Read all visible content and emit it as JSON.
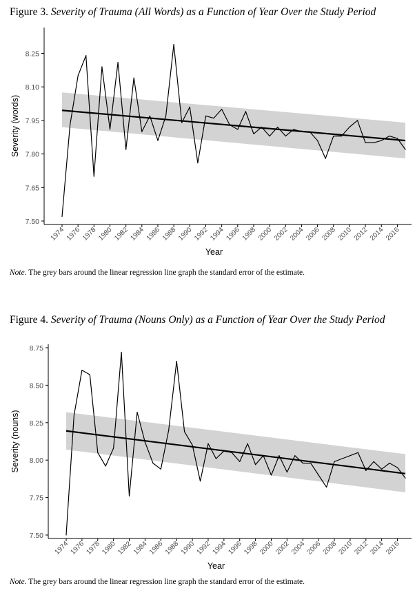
{
  "figures": [
    {
      "label": "Figure 3.",
      "title": "Severity of Trauma (All Words) as a Function of Year Over the Study Period",
      "note_label": "Note.",
      "note_text": "The grey bars around the linear regression line graph the standard error of the estimate."
    },
    {
      "label": "Figure 4.",
      "title": "Severity of Trauma (Nouns Only) as a Function of Year Over the Study Period",
      "note_label": "Note.",
      "note_text": "The grey bars around the linear regression line graph the standard error of the estimate."
    }
  ],
  "colors": {
    "line": "#000000",
    "band": "#d3d3d3",
    "axis": "#000000",
    "tick_text": "#4d4d4d"
  },
  "chart_data": [
    {
      "type": "line",
      "xlabel": "Year",
      "ylabel": "Severity (words)",
      "xlim": [
        1974,
        2017
      ],
      "ylim": [
        7.5,
        8.35
      ],
      "yticks": [
        7.5,
        7.65,
        7.8,
        7.95,
        8.1,
        8.25
      ],
      "ytick_labels": [
        "7.50",
        "7.65",
        "7.80",
        "7.95",
        "8.10",
        "8.25"
      ],
      "xticks": [
        1974,
        1976,
        1978,
        1980,
        1982,
        1984,
        1986,
        1988,
        1990,
        1992,
        1994,
        1996,
        1998,
        2000,
        2002,
        2004,
        2006,
        2008,
        2010,
        2012,
        2014,
        2016
      ],
      "x": [
        1974,
        1975,
        1976,
        1977,
        1978,
        1979,
        1980,
        1981,
        1982,
        1983,
        1984,
        1985,
        1986,
        1987,
        1988,
        1989,
        1990,
        1991,
        1992,
        1993,
        1994,
        1995,
        1996,
        1997,
        1998,
        1999,
        2000,
        2001,
        2002,
        2003,
        2004,
        2005,
        2006,
        2007,
        2008,
        2009,
        2010,
        2011,
        2012,
        2013,
        2014,
        2015,
        2016,
        2017
      ],
      "y": [
        7.52,
        7.93,
        8.15,
        8.24,
        7.7,
        8.19,
        7.91,
        8.21,
        7.82,
        8.14,
        7.9,
        7.97,
        7.86,
        7.97,
        8.29,
        7.94,
        8.01,
        7.76,
        7.97,
        7.96,
        8.0,
        7.93,
        7.91,
        7.99,
        7.89,
        7.92,
        7.88,
        7.92,
        7.88,
        7.91,
        7.9,
        7.9,
        7.86,
        7.78,
        7.88,
        7.88,
        7.92,
        7.95,
        7.85,
        7.85,
        7.86,
        7.88,
        7.87,
        7.82
      ],
      "fit": {
        "start": 7.995,
        "end": 7.86
      },
      "se_band": {
        "start": [
          7.92,
          8.075
        ],
        "end": [
          7.78,
          7.94
        ]
      }
    },
    {
      "type": "line",
      "xlabel": "Year",
      "ylabel": "Severity (nouns)",
      "xlim": [
        1974,
        2017
      ],
      "ylim": [
        7.5,
        8.75
      ],
      "yticks": [
        7.5,
        7.75,
        8.0,
        8.25,
        8.5,
        8.75
      ],
      "ytick_labels": [
        "7.50",
        "7.75",
        "8.00",
        "8.25",
        "8.50",
        "8.75"
      ],
      "xticks": [
        1974,
        1976,
        1978,
        1980,
        1982,
        1984,
        1986,
        1988,
        1990,
        1992,
        1994,
        1996,
        1998,
        2000,
        2002,
        2004,
        2006,
        2008,
        2010,
        2012,
        2014,
        2016
      ],
      "x": [
        1974,
        1975,
        1976,
        1977,
        1978,
        1979,
        1980,
        1981,
        1982,
        1983,
        1984,
        1985,
        1986,
        1987,
        1988,
        1989,
        1990,
        1991,
        1992,
        1993,
        1994,
        1995,
        1996,
        1997,
        1998,
        1999,
        2000,
        2001,
        2002,
        2003,
        2004,
        2005,
        2006,
        2007,
        2008,
        2009,
        2010,
        2011,
        2012,
        2013,
        2014,
        2015,
        2016,
        2017
      ],
      "y": [
        7.5,
        8.3,
        8.6,
        8.57,
        8.05,
        7.96,
        8.08,
        8.72,
        7.76,
        8.32,
        8.12,
        7.98,
        7.94,
        8.2,
        8.66,
        8.19,
        8.1,
        7.86,
        8.11,
        8.01,
        8.06,
        8.05,
        7.99,
        8.11,
        7.97,
        8.03,
        7.9,
        8.03,
        7.92,
        8.03,
        7.98,
        7.98,
        7.9,
        7.82,
        7.99,
        8.01,
        8.03,
        8.05,
        7.93,
        7.99,
        7.94,
        7.98,
        7.95,
        7.88
      ],
      "fit": {
        "start": 8.195,
        "end": 7.91
      },
      "se_band": {
        "start": [
          8.07,
          8.32
        ],
        "end": [
          7.785,
          8.04
        ]
      }
    }
  ]
}
